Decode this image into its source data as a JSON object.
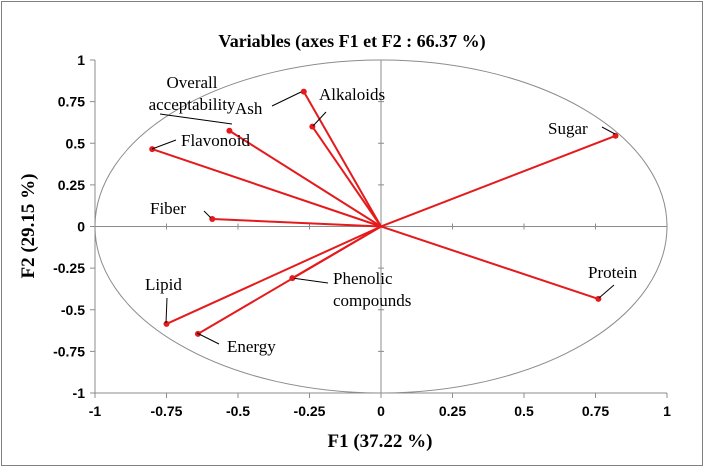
{
  "chart_data": {
    "type": "scatter",
    "title": "Variables (axes F1 et F2 : 66.37 %)",
    "xlabel": "F1 (37.22 %)",
    "ylabel": "F2 (29.15 %)",
    "xlim": [
      -1,
      1
    ],
    "ylim": [
      -1,
      1
    ],
    "xticks": [
      "-1",
      "-0.75",
      "-0.5",
      "-0.25",
      "0",
      "0.25",
      "0.5",
      "0.75",
      "1"
    ],
    "yticks": [
      "1",
      "0.75",
      "0.5",
      "0.25",
      "0",
      "-0.25",
      "-0.5",
      "-0.75",
      "-1"
    ],
    "grid": false,
    "correlation_circle": true,
    "vector_color": "#e41a1c",
    "variables": [
      {
        "name": "Overall acceptability",
        "lines": [
          "Overall",
          "acceptability"
        ],
        "x": -0.53,
        "y": 0.575
      },
      {
        "name": "Ash",
        "lines": [
          "Ash"
        ],
        "x": -0.27,
        "y": 0.81
      },
      {
        "name": "Alkaloids",
        "lines": [
          "Alkaloids"
        ],
        "x": -0.24,
        "y": 0.6
      },
      {
        "name": "Flavonoid",
        "lines": [
          "Flavonoid"
        ],
        "x": -0.8,
        "y": 0.465
      },
      {
        "name": "Sugar",
        "lines": [
          "Sugar"
        ],
        "x": 0.82,
        "y": 0.545
      },
      {
        "name": "Fiber",
        "lines": [
          "Fiber"
        ],
        "x": -0.59,
        "y": 0.045
      },
      {
        "name": "Phenolic compounds",
        "lines": [
          "Phenolic",
          "compounds"
        ],
        "x": -0.31,
        "y": -0.31
      },
      {
        "name": "Protein",
        "lines": [
          "Protein"
        ],
        "x": 0.76,
        "y": -0.435
      },
      {
        "name": "Lipid",
        "lines": [
          "Lipid"
        ],
        "x": -0.75,
        "y": -0.585
      },
      {
        "name": "Energy",
        "lines": [
          "Energy"
        ],
        "x": -0.64,
        "y": -0.645
      }
    ]
  }
}
